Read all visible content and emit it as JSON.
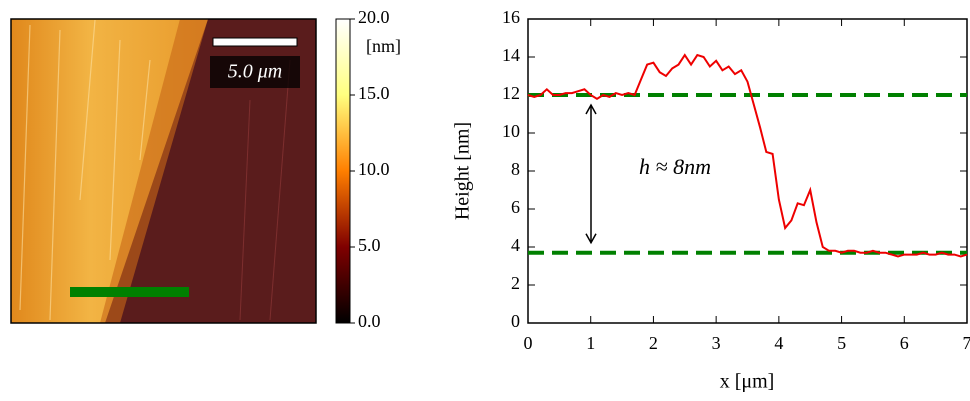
{
  "chart_data": [
    {
      "type": "image",
      "scale_bar_label": "5.0 μm",
      "colorbar": {
        "label": "[nm]",
        "colormap": "afmhot",
        "lim": [
          0,
          20
        ],
        "ticks": [
          {
            "value": 0,
            "label": "0.0"
          },
          {
            "value": 5,
            "label": "5.0"
          },
          {
            "value": 10,
            "label": "10.0"
          },
          {
            "value": 15,
            "label": "15.0"
          },
          {
            "value": 20,
            "label": "20.0"
          }
        ]
      }
    },
    {
      "type": "line",
      "xlabel": "x [μm]",
      "ylabel": "Height [nm]",
      "annotation": "h ≈ 8nm",
      "xlim": [
        0,
        7
      ],
      "ylim": [
        0,
        16
      ],
      "xticks": [
        0,
        1,
        2,
        3,
        4,
        5,
        6,
        7
      ],
      "yticks": [
        0,
        2,
        4,
        6,
        8,
        10,
        12,
        14,
        16
      ],
      "x": [
        0,
        0.1,
        0.2,
        0.3,
        0.4,
        0.5,
        0.6,
        0.7,
        0.8,
        0.9,
        1.0,
        1.1,
        1.2,
        1.3,
        1.4,
        1.5,
        1.6,
        1.7,
        1.8,
        1.9,
        2.0,
        2.1,
        2.2,
        2.3,
        2.4,
        2.5,
        2.6,
        2.7,
        2.8,
        2.9,
        3.0,
        3.1,
        3.2,
        3.3,
        3.4,
        3.5,
        3.6,
        3.7,
        3.8,
        3.9,
        4.0,
        4.1,
        4.2,
        4.3,
        4.4,
        4.5,
        4.6,
        4.7,
        4.8,
        4.9,
        5.0,
        5.1,
        5.2,
        5.3,
        5.4,
        5.5,
        5.6,
        5.7,
        5.8,
        5.9,
        6.0,
        6.1,
        6.2,
        6.3,
        6.4,
        6.5,
        6.6,
        6.7,
        6.8,
        6.9,
        7.0
      ],
      "series": [
        {
          "color": "#ee0000",
          "values": [
            12.0,
            11.9,
            12.0,
            12.3,
            12.0,
            12.0,
            12.1,
            12.1,
            12.2,
            12.3,
            12.0,
            11.8,
            12.0,
            11.9,
            12.1,
            12.0,
            12.1,
            12.0,
            12.8,
            13.6,
            13.7,
            13.2,
            13.0,
            13.4,
            13.6,
            14.1,
            13.6,
            14.1,
            14.0,
            13.5,
            13.8,
            13.3,
            13.5,
            13.1,
            13.3,
            12.7,
            11.5,
            10.3,
            9.0,
            8.9,
            6.5,
            5.0,
            5.4,
            6.3,
            6.2,
            7.0,
            5.3,
            4.0,
            3.8,
            3.8,
            3.7,
            3.8,
            3.8,
            3.7,
            3.7,
            3.8,
            3.7,
            3.7,
            3.6,
            3.5,
            3.6,
            3.6,
            3.6,
            3.7,
            3.6,
            3.6,
            3.7,
            3.6,
            3.6,
            3.5,
            3.6
          ]
        }
      ],
      "hlines": [
        {
          "value": 12,
          "color": "#008000"
        },
        {
          "value": 3.7,
          "color": "#008000"
        }
      ]
    }
  ]
}
